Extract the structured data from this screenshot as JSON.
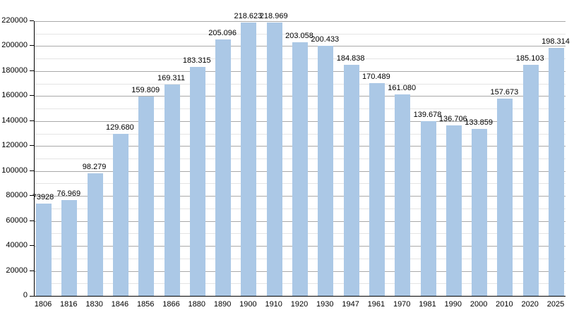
{
  "chart_data": {
    "type": "bar",
    "title": "",
    "xlabel": "",
    "ylabel": "",
    "categories": [
      "1806",
      "1816",
      "1830",
      "1846",
      "1856",
      "1866",
      "1880",
      "1890",
      "1900",
      "1910",
      "1920",
      "1930",
      "1947",
      "1961",
      "1970",
      "1981",
      "1990",
      "2000",
      "2010",
      "2020",
      "2025"
    ],
    "values": [
      73928,
      76969,
      98279,
      129680,
      159809,
      169311,
      183315,
      205096,
      218623,
      218969,
      203058,
      200433,
      184838,
      170489,
      161080,
      139678,
      136706,
      133859,
      157673,
      185103,
      198314
    ],
    "value_labels": [
      "73928",
      "76.969",
      "98.279",
      "129.680",
      "159.809",
      "169.311",
      "183.315",
      "205.096",
      "218.623",
      "218.969",
      "203.058",
      "200.433",
      "184.838",
      "170.489",
      "161.080",
      "139.678",
      "136.706",
      "133.859",
      "157.673",
      "185.103",
      "198.314"
    ],
    "ylim": [
      0,
      220000
    ],
    "y_major_step": 20000,
    "y_minor_step": 10000,
    "y_tick_labels": [
      "0",
      "20000",
      "40000",
      "60000",
      "80000",
      "100000",
      "120000",
      "140000",
      "160000",
      "180000",
      "200000",
      "220000"
    ],
    "grid": "horizontal",
    "legend": "none",
    "colors": {
      "bar_fill": "#abc8e6",
      "major_gridline": "#a9a9a9",
      "minor_gridline": "#e4e4e4",
      "axis": "#000000",
      "text": "#000000",
      "background": "#ffffff"
    }
  }
}
